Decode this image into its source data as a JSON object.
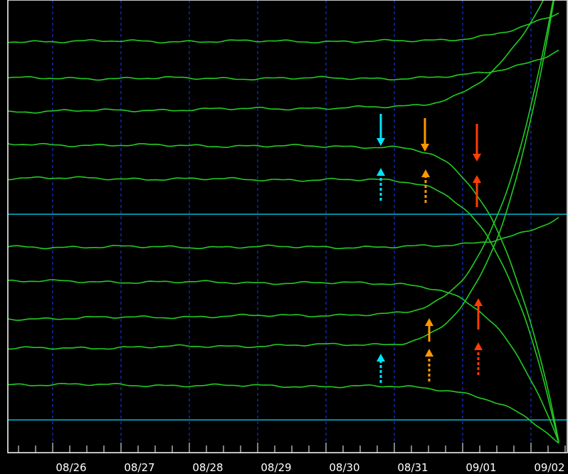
{
  "chart_data": {
    "type": "line",
    "title": "",
    "xlabel": "",
    "ylabel": "",
    "x_tick_labels": [
      "08/26",
      "08/27",
      "08/28",
      "08/29",
      "08/30",
      "08/31",
      "09/01",
      "09/02"
    ],
    "grid": true,
    "legend": "none",
    "colors": {
      "background": "#000000",
      "frame": "#ffffff",
      "trace": "#22cc22",
      "reference_line": "#00bcd4",
      "grid": "#1a3cff",
      "arrow_cyan": "#00e5ff",
      "arrow_orange": "#ff9800",
      "arrow_red": "#ff3d00"
    },
    "series": [
      {
        "trend": "flat",
        "offset": 0.0
      },
      {
        "trend": "flat",
        "offset": 0.0
      },
      {
        "trend": "up",
        "offset": 0.0
      },
      {
        "trend": "down",
        "offset": 0.0
      },
      {
        "trend": "down",
        "offset": 0.0
      },
      {
        "trend": "flat",
        "offset": 0.0
      },
      {
        "trend": "down",
        "offset": 0.0
      },
      {
        "trend": "up",
        "offset": 0.0
      },
      {
        "trend": "up",
        "offset": 0.0
      },
      {
        "trend": "down",
        "offset": 0.0
      }
    ],
    "annotations": [
      {
        "color": "arrow_cyan",
        "date": "08/30",
        "direction": "down",
        "style": "solid"
      },
      {
        "color": "arrow_orange",
        "date": "08/31",
        "direction": "down",
        "style": "solid"
      },
      {
        "color": "arrow_red",
        "date": "09/01",
        "direction": "down",
        "style": "solid"
      },
      {
        "color": "arrow_cyan",
        "date": "08/30",
        "direction": "up",
        "style": "dotted"
      },
      {
        "color": "arrow_orange",
        "date": "08/31",
        "direction": "up",
        "style": "dotted"
      },
      {
        "color": "arrow_red",
        "date": "09/01",
        "direction": "up",
        "style": "solid"
      },
      {
        "color": "arrow_orange",
        "date": "08/31",
        "direction": "up",
        "style": "solid"
      },
      {
        "color": "arrow_red",
        "date": "09/01",
        "direction": "up",
        "style": "solid"
      },
      {
        "color": "arrow_cyan",
        "date": "08/30",
        "direction": "up",
        "style": "dotted"
      },
      {
        "color": "arrow_orange",
        "date": "08/31",
        "direction": "up",
        "style": "dotted"
      },
      {
        "color": "arrow_red",
        "date": "09/01",
        "direction": "up",
        "style": "dotted"
      }
    ]
  }
}
